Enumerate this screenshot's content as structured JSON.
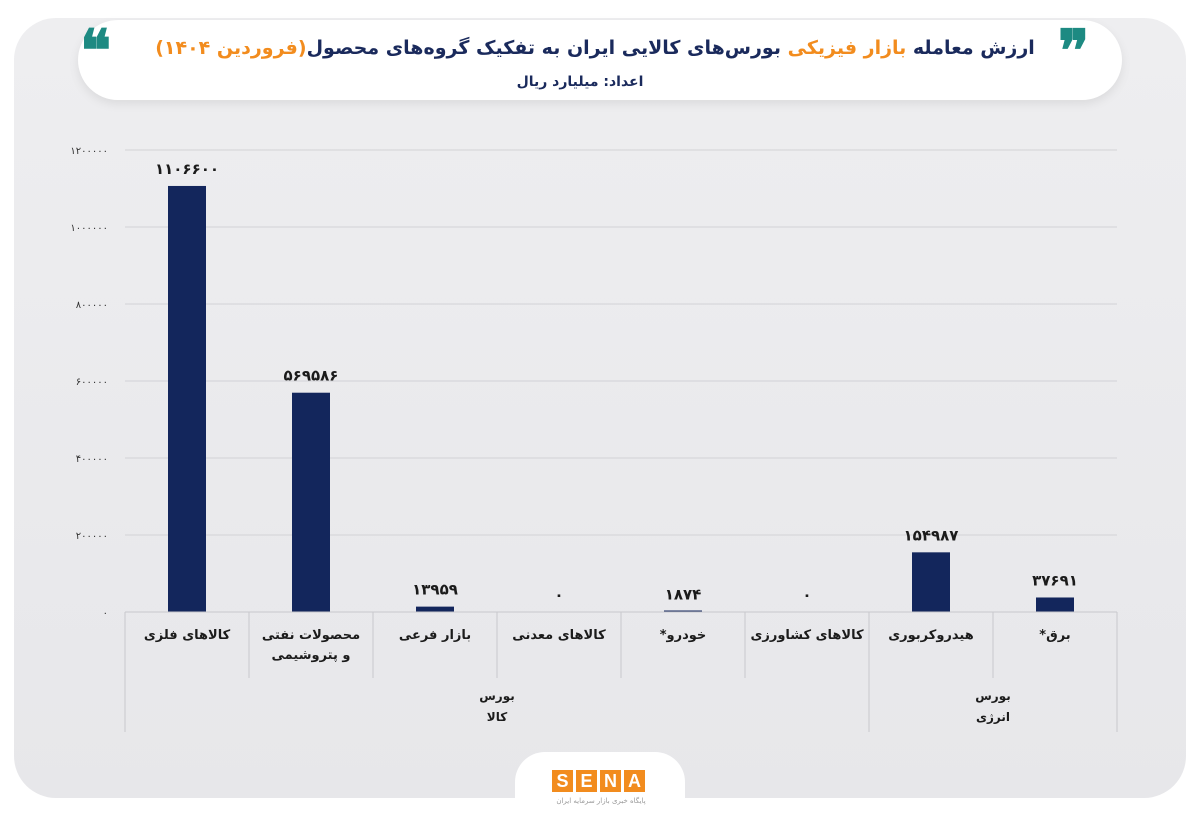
{
  "header": {
    "title_prefix": "ارزش معامله ",
    "title_highlight": "بازار فیزیکی",
    "title_middle": " بورس‌های کالایی ایران به تفکیک گروه‌های محصول",
    "title_suffix": "(فروردین ۱۴۰۴)",
    "subtitle": "اعداد: میلیارد ریال"
  },
  "logo": {
    "letters": [
      "S",
      "E",
      "N",
      "A"
    ],
    "tagline": "پایگاه خبری بازار سرمایه ایران"
  },
  "colors": {
    "bar": "#13265c",
    "accent": "#f28c1e",
    "quote": "#1d8a82"
  },
  "chart_data": {
    "type": "bar",
    "title": "ارزش معامله بازار فیزیکی بورس‌های کالایی ایران به تفکیک گروه‌های محصول (فروردین ۱۴۰۴)",
    "ylabel": "اعداد: میلیارد ریال",
    "ylim": [
      0,
      1200000
    ],
    "yticks": [
      0,
      200000,
      400000,
      600000,
      800000,
      1000000,
      1200000
    ],
    "ytick_labels": [
      "۰",
      "۲۰۰۰۰۰",
      "۴۰۰۰۰۰",
      "۶۰۰۰۰۰",
      "۸۰۰۰۰۰",
      "۱۰۰۰۰۰۰",
      "۱۲۰۰۰۰۰"
    ],
    "grid": true,
    "categories": [
      {
        "label": [
          "کالاهای فلزی"
        ],
        "value": 1106600,
        "value_label": "۱۱۰۶۶۰۰"
      },
      {
        "label": [
          "محصولات نفتی",
          "و پتروشیمی"
        ],
        "value": 569586,
        "value_label": "۵۶۹۵۸۶"
      },
      {
        "label": [
          "بازار فرعی"
        ],
        "value": 13959,
        "value_label": "۱۳۹۵۹"
      },
      {
        "label": [
          "کالاهای معدنی"
        ],
        "value": 0,
        "value_label": "۰"
      },
      {
        "label": [
          "خودرو*"
        ],
        "value": 1874,
        "value_label": "۱۸۷۴"
      },
      {
        "label": [
          "کالاهای کشاورزی"
        ],
        "value": 0,
        "value_label": "۰"
      },
      {
        "label": [
          "هیدروکربوری"
        ],
        "value": 154987,
        "value_label": "۱۵۴۹۸۷"
      },
      {
        "label": [
          "برق*"
        ],
        "value": 37691,
        "value_label": "۳۷۶۹۱"
      }
    ],
    "groups": [
      {
        "label": [
          "بورس",
          "کالا"
        ],
        "start": 0,
        "end": 5
      },
      {
        "label": [
          "بورس",
          "انرژی"
        ],
        "start": 6,
        "end": 7
      }
    ]
  }
}
